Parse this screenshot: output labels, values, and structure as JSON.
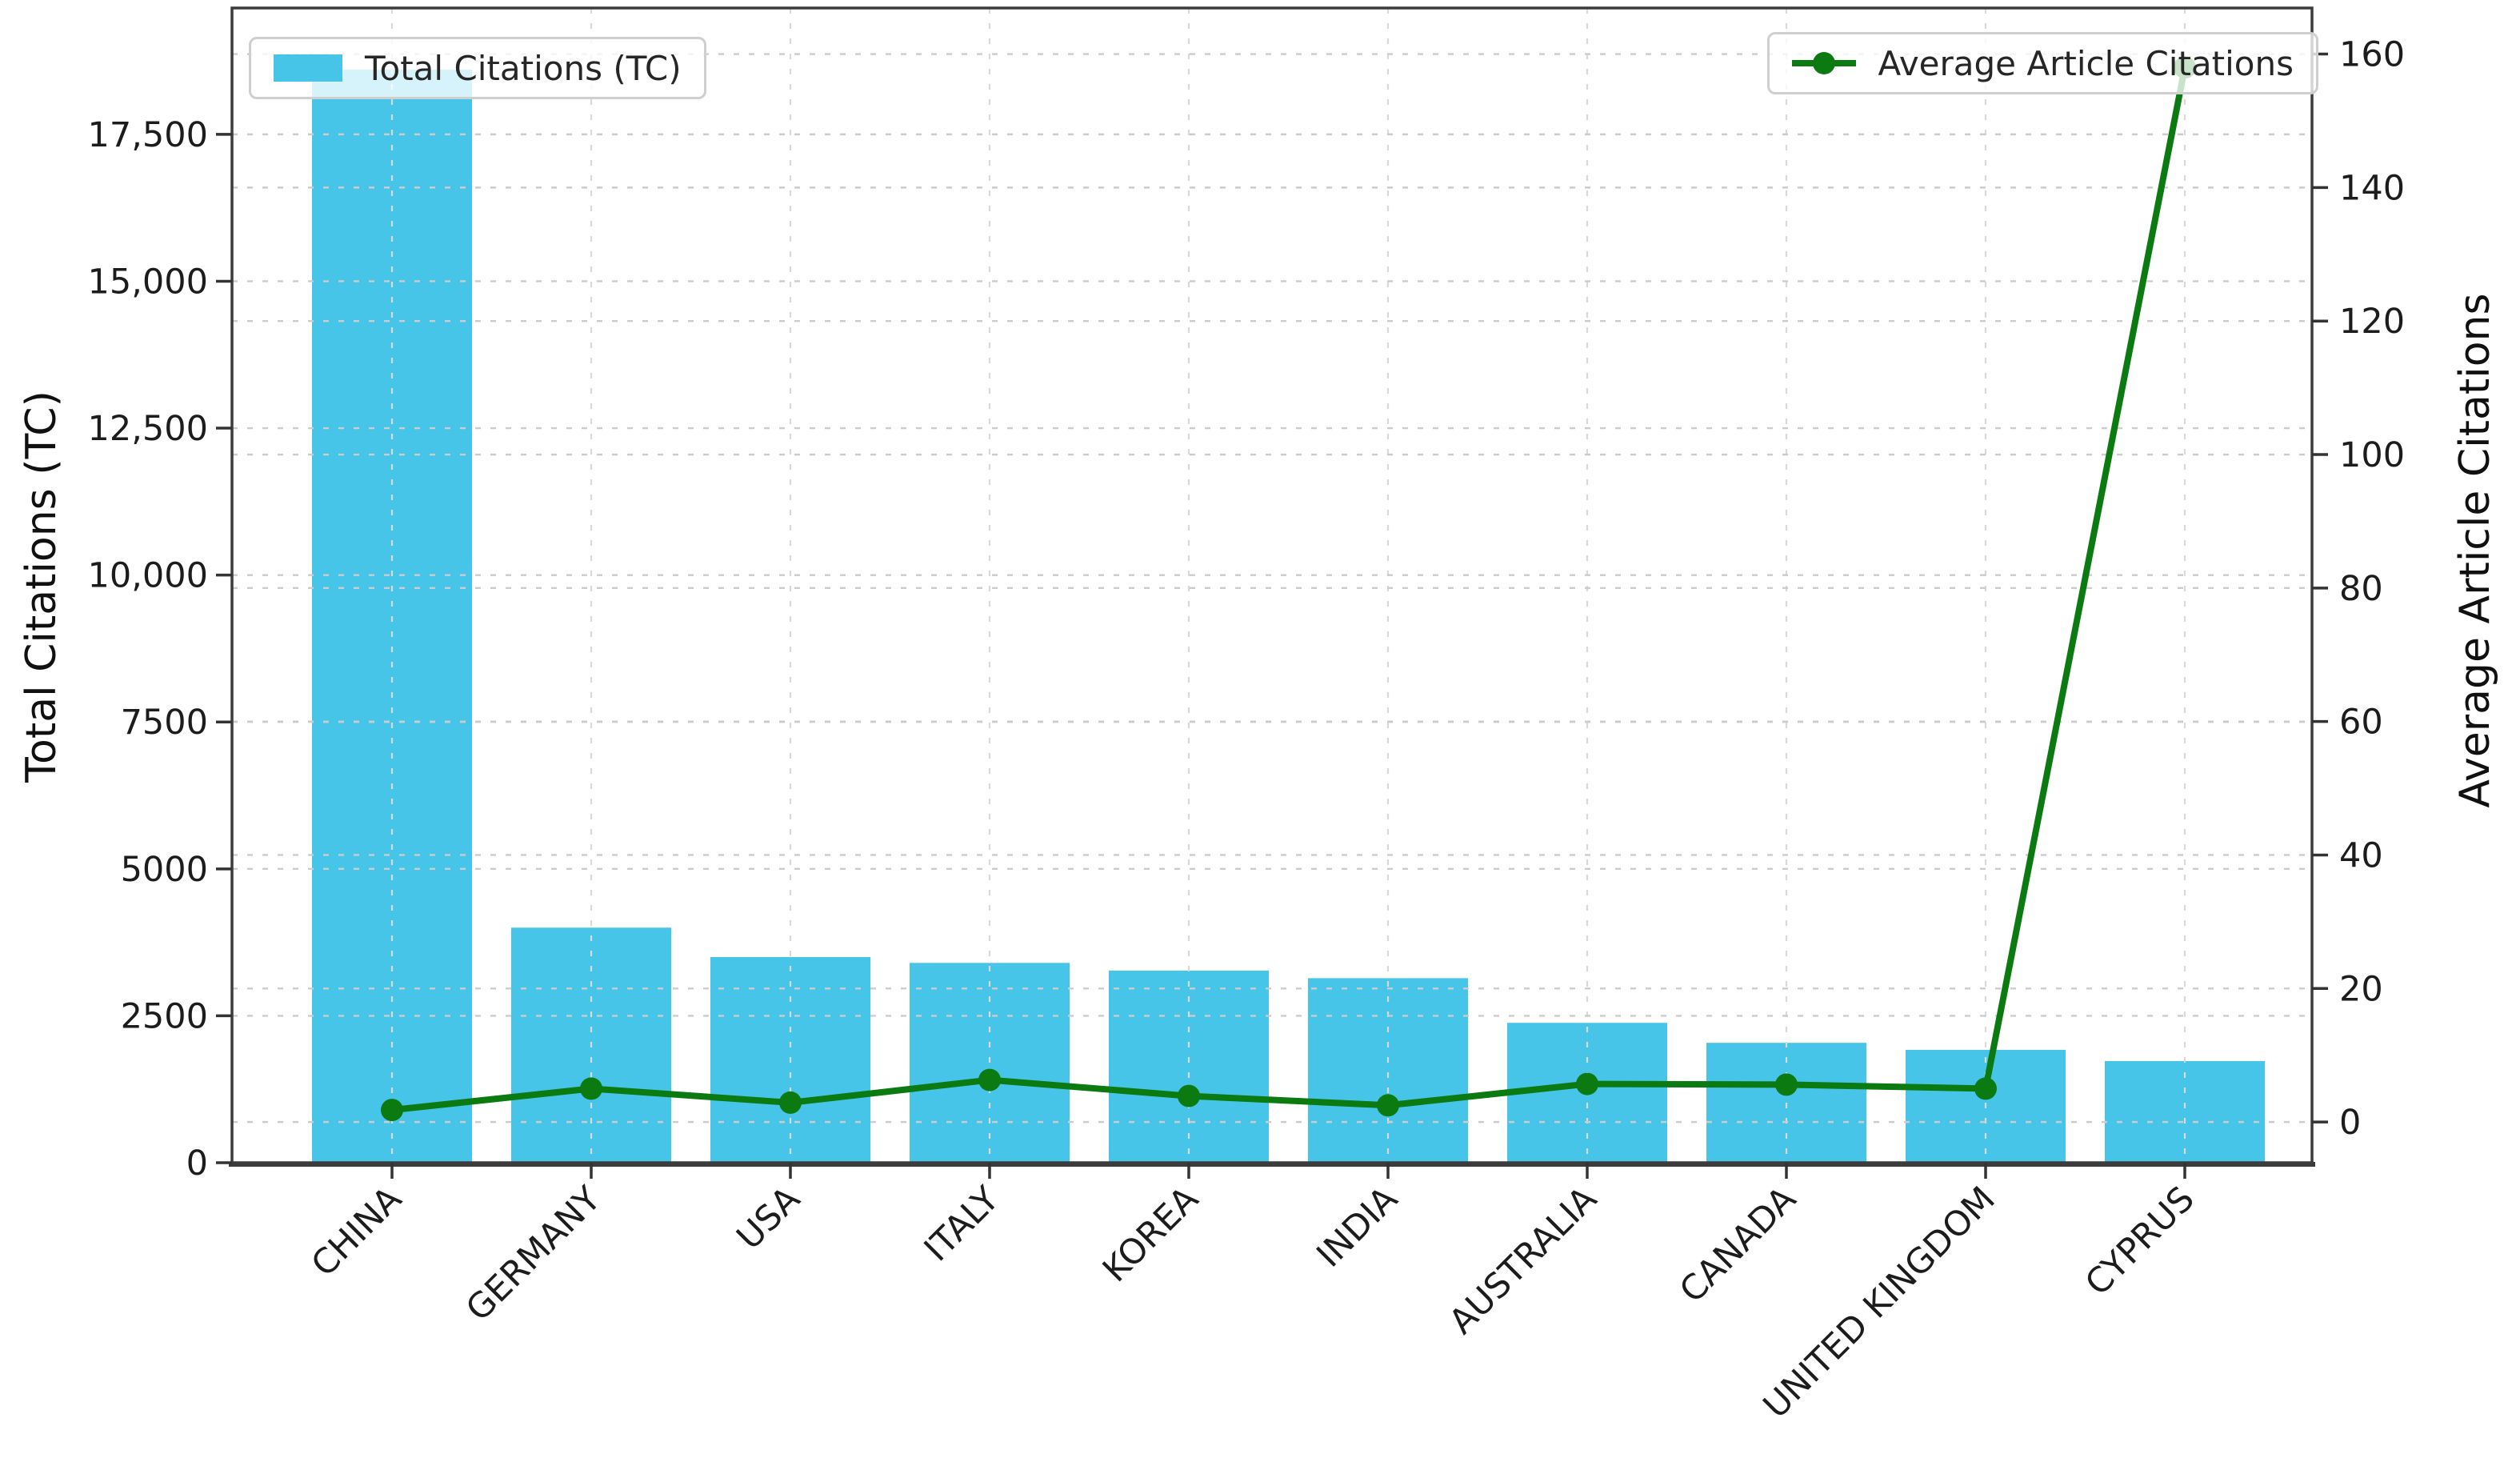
{
  "colors": {
    "bar": "#46c5e8",
    "line": "#0b7a10",
    "grid_horizontal": "#cccccc",
    "grid_vertical": "#d9d9d9",
    "spine": "#3c3c3c",
    "tick": "#333333",
    "text": "#1c1c1c",
    "legend_border": "#cfcfcf",
    "legend_bg": "rgba(255,255,255,0.78)"
  },
  "chart_data": {
    "type": "bar-line-dual-axis",
    "categories": [
      "CHINA",
      "GERMANY",
      "USA",
      "ITALY",
      "KOREA",
      "INDIA",
      "AUSTRALIA",
      "CANADA",
      "UNITED KINGDOM",
      "CYPRUS"
    ],
    "series": [
      {
        "name": "Total Citations (TC)",
        "type": "bar",
        "axis": "left",
        "color": "#46c5e8",
        "values": [
          18600,
          4000,
          3500,
          3400,
          3270,
          3140,
          2380,
          2040,
          1920,
          1730
        ]
      },
      {
        "name": "Average Article Citations",
        "type": "line",
        "axis": "right",
        "color": "#0b7a10",
        "values": [
          1.8,
          5.0,
          2.9,
          6.3,
          3.9,
          2.5,
          5.7,
          5.6,
          5.0,
          158
        ]
      }
    ],
    "axes": {
      "left": {
        "label": "Total Citations (TC)",
        "tick_values": [
          0,
          2500,
          5000,
          7500,
          10000,
          12500,
          15000,
          17500
        ],
        "tick_labels": [
          "0",
          "2500",
          "5000",
          "7500",
          "10,000",
          "12,500",
          "15,000",
          "17,500"
        ],
        "range": [
          0,
          19650
        ]
      },
      "right": {
        "label": "Average Article Citations",
        "tick_values": [
          0,
          20,
          40,
          60,
          80,
          100,
          120,
          140,
          160
        ],
        "tick_labels": [
          "0",
          "20",
          "40",
          "60",
          "80",
          "100",
          "120",
          "140",
          "160"
        ],
        "range": [
          -6.1,
          166.9
        ]
      }
    },
    "grid": {
      "horizontal": "dashed",
      "vertical": "dashed-at-category-centers",
      "gridlines_above_bars": true
    },
    "legend_positions": {
      "bar": "upper-left",
      "line": "upper-right"
    },
    "x_tick_rotation_deg": 45
  }
}
